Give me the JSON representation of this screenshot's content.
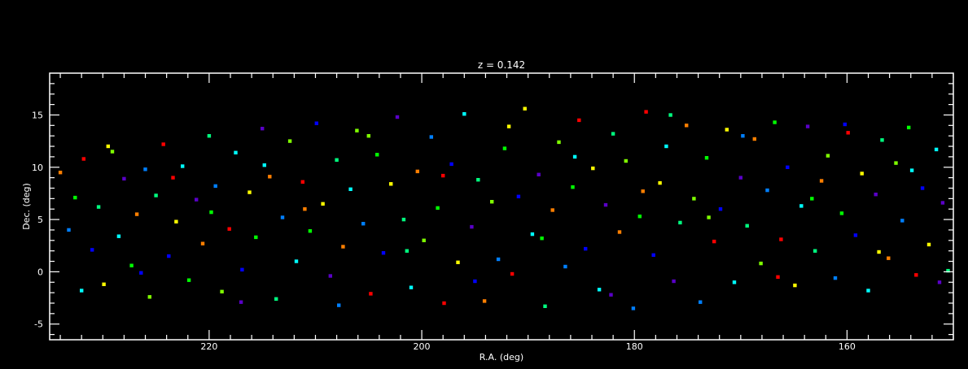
{
  "chart_data": {
    "type": "scatter",
    "title": "z = 0.142",
    "xlabel": "R.A. (deg)",
    "ylabel": "Dec. (deg)",
    "xlim": [
      235,
      150
    ],
    "ylim": [
      -6.5,
      19
    ],
    "x_reversed": true,
    "x_ticks": [
      220,
      200,
      180,
      160
    ],
    "y_ticks": [
      -5,
      0,
      5,
      10,
      15
    ],
    "grid": false,
    "background": "#000000",
    "foreground": "#ffffff",
    "point_colors": [
      "#ff0000",
      "#ff7f00",
      "#ffff00",
      "#7fff00",
      "#00ff00",
      "#00ff7f",
      "#00ffff",
      "#007fff",
      "#0000ff",
      "#5a00c8"
    ],
    "points": [
      [
        234.0,
        9.5,
        1
      ],
      [
        233.2,
        4.0,
        7
      ],
      [
        232.6,
        7.1,
        4
      ],
      [
        231.8,
        10.8,
        0
      ],
      [
        231.0,
        2.1,
        8
      ],
      [
        230.4,
        6.2,
        5
      ],
      [
        229.9,
        -1.2,
        2
      ],
      [
        229.1,
        11.5,
        3
      ],
      [
        228.5,
        3.4,
        6
      ],
      [
        228.0,
        8.9,
        9
      ],
      [
        227.3,
        0.6,
        4
      ],
      [
        226.8,
        5.5,
        1
      ],
      [
        226.0,
        9.8,
        7
      ],
      [
        225.6,
        -2.4,
        3
      ],
      [
        225.0,
        7.3,
        5
      ],
      [
        224.3,
        12.2,
        0
      ],
      [
        223.8,
        1.5,
        8
      ],
      [
        223.1,
        4.8,
        2
      ],
      [
        222.5,
        10.1,
        6
      ],
      [
        221.9,
        -0.8,
        4
      ],
      [
        221.2,
        6.9,
        9
      ],
      [
        220.6,
        2.7,
        1
      ],
      [
        220.0,
        13.0,
        5
      ],
      [
        219.4,
        8.2,
        7
      ],
      [
        218.8,
        -1.9,
        3
      ],
      [
        218.1,
        4.1,
        0
      ],
      [
        217.5,
        11.4,
        6
      ],
      [
        216.9,
        0.2,
        8
      ],
      [
        216.2,
        7.6,
        2
      ],
      [
        215.6,
        3.3,
        4
      ],
      [
        215.0,
        13.7,
        9
      ],
      [
        214.3,
        9.1,
        1
      ],
      [
        213.7,
        -2.6,
        5
      ],
      [
        213.1,
        5.2,
        7
      ],
      [
        212.4,
        12.5,
        3
      ],
      [
        211.8,
        1.0,
        6
      ],
      [
        211.2,
        8.6,
        0
      ],
      [
        210.5,
        3.9,
        4
      ],
      [
        209.9,
        14.2,
        8
      ],
      [
        209.3,
        6.5,
        2
      ],
      [
        208.6,
        -0.4,
        9
      ],
      [
        208.0,
        10.7,
        5
      ],
      [
        207.4,
        2.4,
        1
      ],
      [
        206.7,
        7.9,
        6
      ],
      [
        206.1,
        13.5,
        3
      ],
      [
        205.5,
        4.6,
        7
      ],
      [
        204.8,
        -2.1,
        0
      ],
      [
        204.2,
        11.2,
        4
      ],
      [
        203.6,
        1.8,
        8
      ],
      [
        202.9,
        8.4,
        2
      ],
      [
        202.3,
        14.8,
        9
      ],
      [
        201.7,
        5.0,
        5
      ],
      [
        201.0,
        -1.5,
        6
      ],
      [
        200.4,
        9.6,
        1
      ],
      [
        199.8,
        3.0,
        3
      ],
      [
        199.1,
        12.9,
        7
      ],
      [
        198.5,
        6.1,
        4
      ],
      [
        197.9,
        -3.0,
        0
      ],
      [
        197.2,
        10.3,
        8
      ],
      [
        196.6,
        0.9,
        2
      ],
      [
        196.0,
        15.1,
        6
      ],
      [
        195.3,
        4.3,
        9
      ],
      [
        194.7,
        8.8,
        5
      ],
      [
        194.1,
        -2.8,
        1
      ],
      [
        193.4,
        6.7,
        3
      ],
      [
        192.8,
        1.2,
        7
      ],
      [
        192.2,
        11.8,
        4
      ],
      [
        191.5,
        -0.2,
        0
      ],
      [
        190.9,
        7.2,
        8
      ],
      [
        190.3,
        15.6,
        2
      ],
      [
        189.6,
        3.6,
        6
      ],
      [
        189.0,
        9.3,
        9
      ],
      [
        188.4,
        -3.3,
        5
      ],
      [
        187.7,
        5.9,
        1
      ],
      [
        187.1,
        12.4,
        3
      ],
      [
        186.5,
        0.5,
        7
      ],
      [
        185.8,
        8.1,
        4
      ],
      [
        185.2,
        14.5,
        0
      ],
      [
        184.6,
        2.2,
        8
      ],
      [
        183.9,
        9.9,
        2
      ],
      [
        183.3,
        -1.7,
        6
      ],
      [
        182.7,
        6.4,
        9
      ],
      [
        182.0,
        13.2,
        5
      ],
      [
        181.4,
        3.8,
        1
      ],
      [
        180.8,
        10.6,
        3
      ],
      [
        180.1,
        -3.5,
        7
      ],
      [
        179.5,
        5.3,
        4
      ],
      [
        178.9,
        15.3,
        0
      ],
      [
        178.2,
        1.6,
        8
      ],
      [
        177.6,
        8.5,
        2
      ],
      [
        177.0,
        12.0,
        6
      ],
      [
        176.3,
        -0.9,
        9
      ],
      [
        175.7,
        4.7,
        5
      ],
      [
        175.1,
        14.0,
        1
      ],
      [
        174.4,
        7.0,
        3
      ],
      [
        173.8,
        -2.9,
        7
      ],
      [
        173.2,
        10.9,
        4
      ],
      [
        172.5,
        2.9,
        0
      ],
      [
        171.9,
        6.0,
        8
      ],
      [
        171.3,
        13.6,
        2
      ],
      [
        170.6,
        -1.0,
        6
      ],
      [
        170.0,
        9.0,
        9
      ],
      [
        169.4,
        4.4,
        5
      ],
      [
        168.7,
        12.7,
        1
      ],
      [
        168.1,
        0.8,
        3
      ],
      [
        167.5,
        7.8,
        7
      ],
      [
        166.8,
        14.3,
        4
      ],
      [
        166.2,
        3.1,
        0
      ],
      [
        165.6,
        10.0,
        8
      ],
      [
        164.9,
        -1.3,
        2
      ],
      [
        164.3,
        6.3,
        6
      ],
      [
        163.7,
        13.9,
        9
      ],
      [
        163.0,
        2.0,
        5
      ],
      [
        162.4,
        8.7,
        1
      ],
      [
        161.8,
        11.1,
        3
      ],
      [
        161.1,
        -0.6,
        7
      ],
      [
        160.5,
        5.6,
        4
      ],
      [
        159.9,
        13.3,
        0
      ],
      [
        159.2,
        3.5,
        8
      ],
      [
        158.6,
        9.4,
        2
      ],
      [
        158.0,
        -1.8,
        6
      ],
      [
        157.3,
        7.4,
        9
      ],
      [
        156.7,
        12.6,
        5
      ],
      [
        156.1,
        1.3,
        1
      ],
      [
        155.4,
        10.4,
        3
      ],
      [
        154.8,
        4.9,
        7
      ],
      [
        154.2,
        13.8,
        4
      ],
      [
        153.5,
        -0.3,
        0
      ],
      [
        152.9,
        8.0,
        8
      ],
      [
        152.3,
        2.6,
        2
      ],
      [
        151.6,
        11.7,
        6
      ],
      [
        151.0,
        6.6,
        9
      ],
      [
        150.5,
        0.1,
        5
      ],
      [
        232.0,
        -1.8,
        6
      ],
      [
        229.5,
        12.0,
        2
      ],
      [
        226.4,
        -0.1,
        8
      ],
      [
        223.4,
        9.0,
        0
      ],
      [
        219.8,
        5.7,
        4
      ],
      [
        217.0,
        -2.9,
        9
      ],
      [
        214.8,
        10.2,
        6
      ],
      [
        211.0,
        6.0,
        1
      ],
      [
        207.8,
        -3.2,
        7
      ],
      [
        205.0,
        13.0,
        3
      ],
      [
        201.4,
        2.0,
        5
      ],
      [
        198.0,
        9.2,
        0
      ],
      [
        195.0,
        -0.9,
        8
      ],
      [
        191.8,
        13.9,
        2
      ],
      [
        188.7,
        3.2,
        4
      ],
      [
        185.6,
        11.0,
        6
      ],
      [
        182.2,
        -2.2,
        9
      ],
      [
        179.2,
        7.7,
        1
      ],
      [
        176.6,
        15.0,
        5
      ],
      [
        173.0,
        5.2,
        3
      ],
      [
        169.8,
        13.0,
        7
      ],
      [
        166.5,
        -0.5,
        0
      ],
      [
        163.3,
        7.0,
        4
      ],
      [
        160.2,
        14.1,
        8
      ],
      [
        157.0,
        1.9,
        2
      ],
      [
        153.9,
        9.7,
        6
      ],
      [
        151.3,
        -1.0,
        9
      ]
    ]
  }
}
